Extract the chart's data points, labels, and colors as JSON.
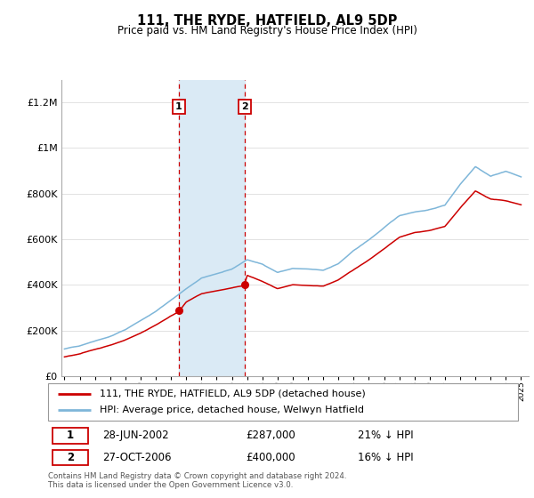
{
  "title": "111, THE RYDE, HATFIELD, AL9 5DP",
  "subtitle": "Price paid vs. HM Land Registry's House Price Index (HPI)",
  "legend_line1": "111, THE RYDE, HATFIELD, AL9 5DP (detached house)",
  "legend_line2": "HPI: Average price, detached house, Welwyn Hatfield",
  "sale1_date": "28-JUN-2002",
  "sale1_price": "£287,000",
  "sale1_hpi": "21% ↓ HPI",
  "sale2_date": "27-OCT-2006",
  "sale2_price": "£400,000",
  "sale2_hpi": "16% ↓ HPI",
  "footer": "Contains HM Land Registry data © Crown copyright and database right 2024.\nThis data is licensed under the Open Government Licence v3.0.",
  "sale1_year": 2002.5,
  "sale2_year": 2006.83,
  "sale1_price_val": 287000,
  "sale2_price_val": 400000,
  "red_line_color": "#cc0000",
  "blue_line_color": "#7eb6d9",
  "shade_color": "#daeaf5",
  "ylim": [
    0,
    1300000
  ],
  "xlim_start": 1994.8,
  "xlim_end": 2025.5,
  "yticks": [
    0,
    200000,
    400000,
    600000,
    800000,
    1000000,
    1200000
  ],
  "ylabels": [
    "£0",
    "£200K",
    "£400K",
    "£600K",
    "£800K",
    "£1M",
    "£1.2M"
  ]
}
